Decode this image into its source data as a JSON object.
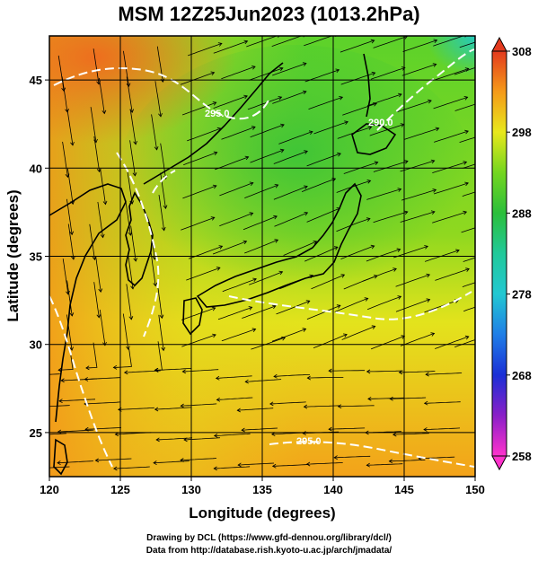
{
  "title": "MSM 12Z25Jun2023 (1013.2hPa)",
  "xlabel": "Longitude (degrees)",
  "ylabel": "Latitude  (degrees)",
  "x_ticks": [
    120,
    125,
    130,
    135,
    140,
    145,
    150
  ],
  "y_ticks": [
    25,
    30,
    35,
    40,
    45
  ],
  "xlim": [
    120,
    150
  ],
  "ylim": [
    22.5,
    47.5
  ],
  "colorbar": {
    "ticks": [
      258,
      268,
      278,
      288,
      298,
      308
    ],
    "range": [
      258,
      308
    ],
    "stops": [
      {
        "v": 258,
        "color": "#ff33cc"
      },
      {
        "v": 263,
        "color": "#8a1fc8"
      },
      {
        "v": 268,
        "color": "#1a2fd6"
      },
      {
        "v": 273,
        "color": "#1f7ee6"
      },
      {
        "v": 278,
        "color": "#22c8d2"
      },
      {
        "v": 283,
        "color": "#21c99a"
      },
      {
        "v": 288,
        "color": "#2bbf3b"
      },
      {
        "v": 293,
        "color": "#74d61f"
      },
      {
        "v": 298,
        "color": "#e8e81c"
      },
      {
        "v": 303,
        "color": "#f59a1a"
      },
      {
        "v": 308,
        "color": "#e33a1e"
      }
    ]
  },
  "contour_labels": [
    "295.0",
    "290.0",
    "295.0"
  ],
  "credits": [
    "Drawing by DCL (https://www.gfd-dennou.org/library/dcl/)",
    "Data from http://database.rish.kyoto-u.ac.jp/arch/jmadata/"
  ]
}
